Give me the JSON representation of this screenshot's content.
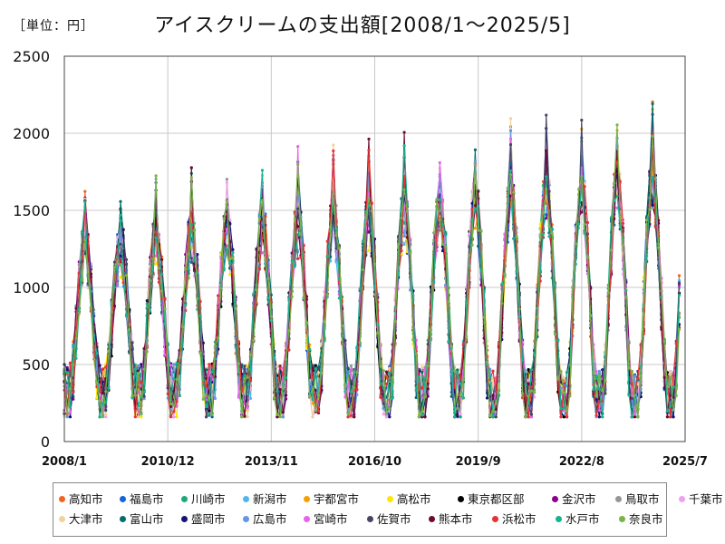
{
  "unit_label": "［単位：円］",
  "chart_data": {
    "type": "line",
    "title": "アイスクリームの支出額[2008/1～2025/5]",
    "xlabel": "",
    "ylabel": "",
    "ylim": [
      0,
      2500
    ],
    "yticks": [
      0,
      500,
      1000,
      1500,
      2000,
      2500
    ],
    "xlim": [
      "2008-01",
      "2025-07"
    ],
    "xticks": [
      "2008/1",
      "2010/12",
      "2013/11",
      "2016/10",
      "2019/9",
      "2022/8",
      "2025/7"
    ],
    "grid": true,
    "legend_position": "bottom",
    "x_start": "2008-01",
    "x_end": "2025-05",
    "seasonal_pattern": "peaks each August, troughs each winter",
    "series": [
      {
        "name": "高知市",
        "color": "#f0641e"
      },
      {
        "name": "福島市",
        "color": "#1464dc"
      },
      {
        "name": "川崎市",
        "color": "#1eaa78"
      },
      {
        "name": "新潟市",
        "color": "#50b4f0"
      },
      {
        "name": "宇都宮市",
        "color": "#f5a000"
      },
      {
        "name": "高松市",
        "color": "#ffe600"
      },
      {
        "name": "東京都区部",
        "color": "#000000"
      },
      {
        "name": "金沢市",
        "color": "#8c008c"
      },
      {
        "name": "鳥取市",
        "color": "#969696"
      },
      {
        "name": "千葉市",
        "color": "#f0a0f0"
      },
      {
        "name": "大津市",
        "color": "#f0d2a0"
      },
      {
        "name": "富山市",
        "color": "#006e6e"
      },
      {
        "name": "盛岡市",
        "color": "#141478"
      },
      {
        "name": "広島市",
        "color": "#6496e6"
      },
      {
        "name": "宮崎市",
        "color": "#e664e6"
      },
      {
        "name": "佐賀市",
        "color": "#464664"
      },
      {
        "name": "熊本市",
        "color": "#6e0a32"
      },
      {
        "name": "浜松市",
        "color": "#e63232"
      },
      {
        "name": "水戸市",
        "color": "#14b48c"
      },
      {
        "name": "奈良市",
        "color": "#78b446"
      }
    ]
  }
}
